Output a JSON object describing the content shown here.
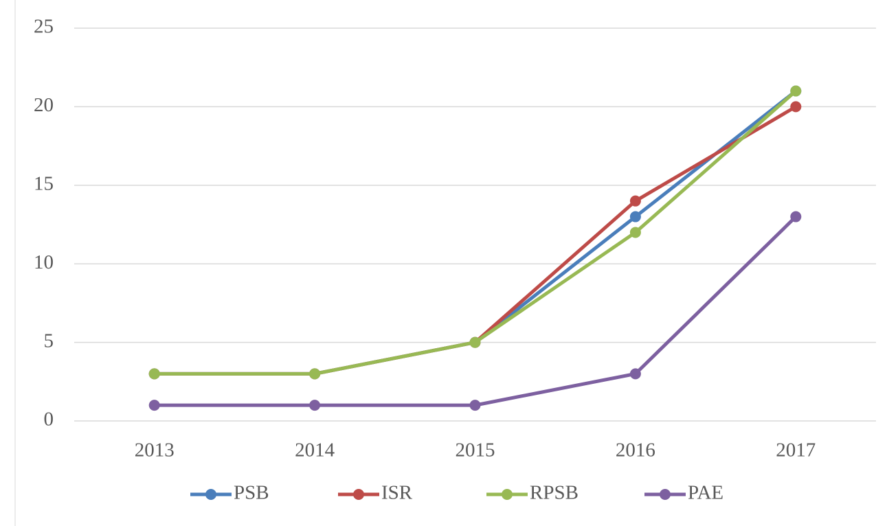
{
  "chart_data": {
    "type": "line",
    "categories": [
      "2013",
      "2014",
      "2015",
      "2016",
      "2017"
    ],
    "series": [
      {
        "name": "PSB",
        "color": "#4a7ebb",
        "values": [
          3,
          3,
          5,
          13,
          21
        ]
      },
      {
        "name": "ISR",
        "color": "#be4b48",
        "values": [
          3,
          3,
          5,
          14,
          20
        ]
      },
      {
        "name": "RPSB",
        "color": "#98b954",
        "values": [
          3,
          3,
          5,
          12,
          21
        ]
      },
      {
        "name": "PAE",
        "color": "#7d60a0",
        "values": [
          1,
          1,
          1,
          3,
          13
        ]
      }
    ],
    "ylim": [
      0,
      25
    ],
    "yticks": [
      0,
      5,
      10,
      15,
      20,
      25
    ],
    "grid": true,
    "legend": "bottom"
  }
}
